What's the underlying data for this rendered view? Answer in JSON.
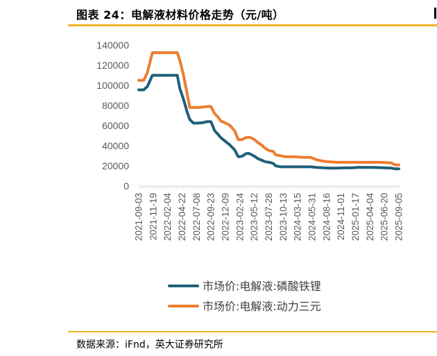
{
  "header": {
    "title": "图表 24：电解液材料价格走势（元/吨）"
  },
  "footer": {
    "source": "数据来源：iFnd，英大证券研究所"
  },
  "colors": {
    "accent_rule": "#f0b323",
    "series_lfp": "#1f5f7a",
    "series_ncm": "#ed7d31",
    "axis": "#d9d9d9",
    "tick_text": "#595959"
  },
  "chart_data": {
    "type": "line",
    "title": "",
    "xlabel": "",
    "ylabel": "",
    "ylim": [
      0,
      140000
    ],
    "y_ticks": [
      "0",
      "20000",
      "40000",
      "60000",
      "80000",
      "100000",
      "120000",
      "140000"
    ],
    "grid": false,
    "legend_position": "bottom",
    "x_tick_labels": [
      "2021-09-03",
      "2021-11-19",
      "2022-02-04",
      "2022-04-22",
      "2022-07-08",
      "2022-09-23",
      "2022-12-09",
      "2023-02-24",
      "2023-05-12",
      "2023-07-28",
      "2023-10-13",
      "2024-03-15",
      "2024-05-31",
      "2024-08-16",
      "2024-11-01",
      "2025-01-17",
      "2025-04-04",
      "2025-06-20",
      "2025-09-05"
    ],
    "x": [
      "2021-09-03",
      "2021-10-01",
      "2021-10-22",
      "2021-11-19",
      "2022-01-14",
      "2022-02-11",
      "2022-03-11",
      "2022-04-08",
      "2022-04-22",
      "2022-05-13",
      "2022-06-03",
      "2022-06-17",
      "2022-07-08",
      "2022-08-05",
      "2022-09-02",
      "2022-09-23",
      "2022-10-14",
      "2022-11-04",
      "2022-11-25",
      "2022-12-09",
      "2022-12-30",
      "2023-01-27",
      "2023-02-24",
      "2023-03-17",
      "2023-04-07",
      "2023-04-28",
      "2023-05-12",
      "2023-05-26",
      "2023-06-16",
      "2023-07-07",
      "2023-07-28",
      "2023-08-18",
      "2023-09-08",
      "2023-09-29",
      "2023-10-13",
      "2023-11-10",
      "2023-12-08",
      "2024-01-26",
      "2024-03-15",
      "2024-04-26",
      "2024-05-31",
      "2024-07-12",
      "2024-08-16",
      "2024-09-27",
      "2024-11-01",
      "2024-12-13",
      "2025-01-17",
      "2025-02-28",
      "2025-04-04",
      "2025-05-16",
      "2025-06-20",
      "2025-07-25",
      "2025-08-15",
      "2025-09-05"
    ],
    "series": [
      {
        "name": "市场价:电解液:磷酸铁锂",
        "color": "#1f5f7a",
        "values": [
          95500,
          95500,
          99000,
          110000,
          110000,
          110000,
          110000,
          110000,
          97000,
          86000,
          73000,
          66000,
          62500,
          62500,
          63000,
          64000,
          64000,
          55000,
          51000,
          48000,
          45000,
          41000,
          36000,
          29000,
          29500,
          32000,
          32500,
          31500,
          29500,
          27000,
          25500,
          24000,
          23500,
          22500,
          20000,
          19000,
          19000,
          19000,
          19000,
          19000,
          18500,
          18000,
          17800,
          17800,
          18000,
          18000,
          18500,
          18500,
          18500,
          18300,
          18000,
          17800,
          17000,
          17000
        ]
      },
      {
        "name": "市场价:电解液:动力三元",
        "color": "#ed7d31",
        "values": [
          105000,
          105000,
          113000,
          132500,
          132500,
          132500,
          132500,
          132500,
          125000,
          110000,
          91000,
          78000,
          78000,
          78000,
          78500,
          79000,
          79000,
          72000,
          68000,
          64500,
          63000,
          60500,
          55000,
          46000,
          46000,
          48000,
          48500,
          48000,
          46000,
          43000,
          40500,
          37000,
          35000,
          34500,
          31000,
          30000,
          29000,
          29000,
          28500,
          28500,
          26000,
          24500,
          24000,
          23500,
          23500,
          23500,
          23500,
          23500,
          23500,
          23500,
          23300,
          23000,
          21000,
          21000
        ]
      }
    ]
  }
}
